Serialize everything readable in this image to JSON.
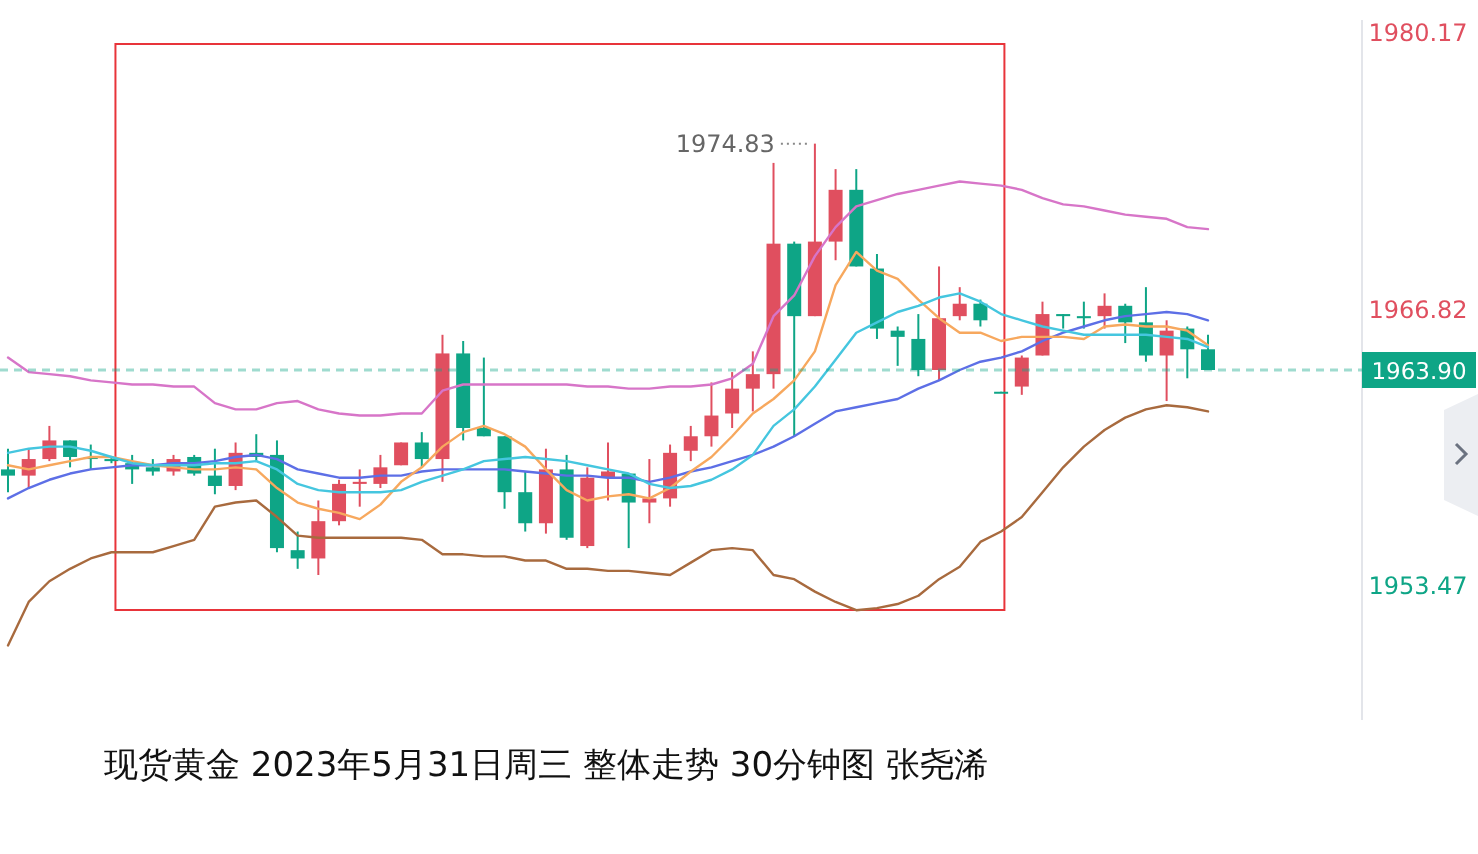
{
  "chart_data": {
    "type": "candlestick",
    "title": "现货黄金 2023年5月31日周三 整体走势 30分钟图 张尧浠",
    "categories": [
      null,
      null,
      null,
      null,
      null,
      null,
      null,
      null,
      null,
      null,
      null,
      null,
      null,
      null,
      null,
      null,
      null,
      null,
      null,
      null,
      null,
      null,
      null,
      null,
      null,
      null,
      null,
      null,
      null,
      null,
      null,
      null,
      null,
      null,
      null,
      null,
      null,
      null,
      null,
      null,
      null,
      null,
      null,
      null,
      null,
      null,
      null,
      null,
      null,
      null,
      null,
      null,
      null,
      null,
      null,
      null,
      null,
      null,
      null
    ],
    "ohlc": [
      [
        1959.1,
        1960.1,
        1958.0,
        1958.8
      ],
      [
        1958.8,
        1960.1,
        1958.2,
        1959.6
      ],
      [
        1959.6,
        1961.2,
        1959.5,
        1960.5
      ],
      [
        1960.5,
        1960.5,
        1959.2,
        1959.7
      ],
      [
        1959.7,
        1960.3,
        1959.1,
        1959.6
      ],
      [
        1959.6,
        1959.7,
        1959.4,
        1959.5
      ],
      [
        1959.4,
        1959.8,
        1958.4,
        1959.1
      ],
      [
        1959.2,
        1959.6,
        1958.8,
        1959.0
      ],
      [
        1959.0,
        1959.8,
        1958.8,
        1959.6
      ],
      [
        1959.7,
        1959.8,
        1958.8,
        1958.9
      ],
      [
        1958.8,
        1960.1,
        1957.9,
        1958.3
      ],
      [
        1958.3,
        1960.4,
        1958.1,
        1959.9
      ],
      [
        1959.9,
        1960.8,
        1959.5,
        1959.7
      ],
      [
        1959.8,
        1960.5,
        1955.1,
        1955.3
      ],
      [
        1955.2,
        1956.1,
        1954.3,
        1954.8
      ],
      [
        1954.8,
        1957.6,
        1954.0,
        1956.6
      ],
      [
        1956.6,
        1958.6,
        1956.4,
        1958.4
      ],
      [
        1958.4,
        1959.1,
        1957.3,
        1958.5
      ],
      [
        1958.4,
        1959.8,
        1958.2,
        1959.2
      ],
      [
        1959.3,
        1960.4,
        1959.3,
        1960.4
      ],
      [
        1960.4,
        1960.9,
        1959.2,
        1959.6
      ],
      [
        1959.6,
        1965.6,
        1958.5,
        1964.7
      ],
      [
        1964.7,
        1965.3,
        1960.5,
        1961.1
      ],
      [
        1961.1,
        1964.5,
        1960.7,
        1960.7
      ],
      [
        1960.7,
        1960.7,
        1957.2,
        1958.0
      ],
      [
        1958.0,
        1959.0,
        1956.1,
        1956.5
      ],
      [
        1956.5,
        1960.1,
        1956.0,
        1959.1
      ],
      [
        1959.1,
        1959.8,
        1955.7,
        1955.8
      ],
      [
        1955.4,
        1959.2,
        1955.3,
        1958.7
      ],
      [
        1958.7,
        1960.4,
        1957.6,
        1959.0
      ],
      [
        1958.9,
        1958.9,
        1955.3,
        1957.5
      ],
      [
        1957.5,
        1959.6,
        1956.5,
        1957.7
      ],
      [
        1957.7,
        1960.3,
        1957.3,
        1959.9
      ],
      [
        1960.0,
        1961.2,
        1959.5,
        1960.7
      ],
      [
        1960.7,
        1963.3,
        1960.2,
        1961.7
      ],
      [
        1961.8,
        1963.8,
        1961.1,
        1963.0
      ],
      [
        1963.0,
        1964.8,
        1961.9,
        1963.7
      ],
      [
        1963.7,
        1973.9,
        1963.0,
        1970.0
      ],
      [
        1970.0,
        1970.1,
        1960.7,
        1966.5
      ],
      [
        1966.5,
        1974.83,
        1966.5,
        1970.1
      ],
      [
        1970.1,
        1973.6,
        1969.2,
        1972.6
      ],
      [
        1972.6,
        1973.6,
        1968.9,
        1968.9
      ],
      [
        1968.8,
        1969.5,
        1965.4,
        1965.9
      ],
      [
        1965.8,
        1966.0,
        1964.1,
        1965.5
      ],
      [
        1965.4,
        1966.6,
        1963.6,
        1963.9
      ],
      [
        1963.9,
        1968.9,
        1963.4,
        1966.4
      ],
      [
        1966.5,
        1967.9,
        1966.3,
        1967.1
      ],
      [
        1967.1,
        1967.3,
        1966.0,
        1966.3
      ],
      [
        1962.85,
        1962.85,
        1962.8,
        1962.8
      ],
      [
        1963.1,
        1964.6,
        1962.7,
        1964.5
      ],
      [
        1964.6,
        1967.2,
        1964.6,
        1966.6
      ],
      [
        1966.6,
        1966.6,
        1965.9,
        1966.5
      ],
      [
        1966.5,
        1967.2,
        1965.9,
        1966.4
      ],
      [
        1966.5,
        1967.6,
        1965.9,
        1967.0
      ],
      [
        1967.0,
        1967.1,
        1965.2,
        1966.2
      ],
      [
        1966.2,
        1967.9,
        1964.3,
        1964.6
      ],
      [
        1964.6,
        1966.3,
        1962.4,
        1965.8
      ],
      [
        1965.9,
        1966.0,
        1963.5,
        1964.9
      ],
      [
        1964.9,
        1965.6,
        1963.9,
        1963.9
      ]
    ],
    "colors": [
      "#0ea586",
      "#e04f5f",
      "#e04f5f",
      "#0ea586",
      "#0ea586",
      "#0ea586",
      "#0ea586",
      "#0ea586",
      "#e04f5f",
      "#0ea586",
      "#0ea586",
      "#e04f5f",
      "#0ea586",
      "#0ea586",
      "#0ea586",
      "#e04f5f",
      "#e04f5f",
      "#e04f5f",
      "#e04f5f",
      "#e04f5f",
      "#0ea586",
      "#e04f5f",
      "#0ea586",
      "#0ea586",
      "#0ea586",
      "#0ea586",
      "#e04f5f",
      "#0ea586",
      "#e04f5f",
      "#e04f5f",
      "#0ea586",
      "#e04f5f",
      "#e04f5f",
      "#e04f5f",
      "#e04f5f",
      "#e04f5f",
      "#e04f5f",
      "#e04f5f",
      "#0ea586",
      "#e04f5f",
      "#e04f5f",
      "#0ea586",
      "#0ea586",
      "#0ea586",
      "#0ea586",
      "#e04f5f",
      "#e04f5f",
      "#0ea586",
      "#0ea586",
      "#e04f5f",
      "#e04f5f",
      "#0ea586",
      "#0ea586",
      "#e04f5f",
      "#0ea586",
      "#0ea586",
      "#e04f5f",
      "#0ea586",
      "#0ea586"
    ],
    "series": [
      {
        "type": "line",
        "color": "#d775c8",
        "values": [
          1964.5,
          1963.8,
          1963.7,
          1963.6,
          1963.4,
          1963.3,
          1963.2,
          1963.2,
          1963.1,
          1963.1,
          1962.3,
          1962.0,
          1962.0,
          1962.3,
          1962.4,
          1962.0,
          1961.8,
          1961.7,
          1961.7,
          1961.8,
          1961.8,
          1962.9,
          1963.2,
          1963.2,
          1963.2,
          1963.2,
          1963.2,
          1963.2,
          1963.1,
          1963.1,
          1963.0,
          1963.0,
          1963.1,
          1963.1,
          1963.2,
          1963.5,
          1964.2,
          1966.5,
          1967.5,
          1969.4,
          1970.8,
          1971.8,
          1972.1,
          1972.4,
          1972.6,
          1972.8,
          1973.0,
          1972.9,
          1972.8,
          1972.6,
          1972.2,
          1971.9,
          1971.8,
          1971.6,
          1971.4,
          1971.3,
          1971.2,
          1970.8,
          1970.7
        ]
      },
      {
        "type": "line",
        "color": "#5d6fe6",
        "values": [
          1957.7,
          1958.2,
          1958.6,
          1958.9,
          1959.1,
          1959.2,
          1959.3,
          1959.3,
          1959.4,
          1959.4,
          1959.5,
          1959.7,
          1959.8,
          1959.6,
          1959.1,
          1958.9,
          1958.7,
          1958.7,
          1958.8,
          1958.8,
          1959.0,
          1959.1,
          1959.1,
          1959.1,
          1959.1,
          1959.0,
          1958.9,
          1958.8,
          1958.8,
          1958.7,
          1958.7,
          1958.5,
          1958.7,
          1959.0,
          1959.2,
          1959.5,
          1959.8,
          1960.2,
          1960.7,
          1961.3,
          1961.9,
          1962.1,
          1962.3,
          1962.5,
          1963.0,
          1963.4,
          1963.9,
          1964.3,
          1964.5,
          1964.8,
          1965.3,
          1965.7,
          1966.0,
          1966.3,
          1966.5,
          1966.6,
          1966.7,
          1966.6,
          1966.3
        ]
      },
      {
        "type": "line",
        "color": "#a86a3e",
        "values": [
          1950.6,
          1952.7,
          1953.7,
          1954.3,
          1954.8,
          1955.1,
          1955.1,
          1955.1,
          1955.4,
          1955.7,
          1957.3,
          1957.5,
          1957.6,
          1956.8,
          1955.9,
          1955.8,
          1955.8,
          1955.8,
          1955.8,
          1955.8,
          1955.7,
          1955.0,
          1955.0,
          1954.9,
          1954.9,
          1954.7,
          1954.7,
          1954.3,
          1954.3,
          1954.2,
          1954.2,
          1954.1,
          1954.0,
          1954.6,
          1955.2,
          1955.3,
          1955.2,
          1954.0,
          1953.8,
          1953.2,
          1952.7,
          1952.3,
          1952.4,
          1952.6,
          1953.0,
          1953.8,
          1954.4,
          1955.6,
          1956.1,
          1956.8,
          1958.0,
          1959.2,
          1960.2,
          1961.0,
          1961.6,
          1962.0,
          1962.2,
          1962.1,
          1961.9
        ]
      },
      {
        "type": "line",
        "color": "#f7a85e",
        "values": [
          1959.3,
          1959.1,
          1959.3,
          1959.5,
          1959.7,
          1959.7,
          1959.5,
          1959.3,
          1959.2,
          1959.1,
          1959.1,
          1959.2,
          1959.1,
          1958.2,
          1957.5,
          1957.2,
          1957.0,
          1956.7,
          1957.4,
          1958.5,
          1959.2,
          1960.2,
          1960.9,
          1961.2,
          1960.8,
          1960.2,
          1959.1,
          1958.1,
          1957.6,
          1957.8,
          1957.9,
          1957.7,
          1958.2,
          1959.0,
          1959.7,
          1960.7,
          1961.8,
          1962.5,
          1963.4,
          1964.8,
          1968.0,
          1969.6,
          1968.7,
          1968.3,
          1967.3,
          1966.4,
          1965.7,
          1965.7,
          1965.3,
          1965.5,
          1965.5,
          1965.5,
          1965.4,
          1966.0,
          1966.1,
          1966.0,
          1966.0,
          1965.8,
          1965.1
        ]
      },
      {
        "type": "line",
        "color": "#45c6df",
        "values": [
          1959.9,
          1960.1,
          1960.2,
          1960.2,
          1960.0,
          1959.7,
          1959.4,
          1959.3,
          1959.3,
          1959.3,
          1959.4,
          1959.4,
          1959.5,
          1959.1,
          1958.4,
          1958.1,
          1958.0,
          1958.0,
          1958.0,
          1958.1,
          1958.5,
          1958.8,
          1959.1,
          1959.5,
          1959.6,
          1959.7,
          1959.6,
          1959.5,
          1959.3,
          1959.1,
          1958.9,
          1958.4,
          1958.2,
          1958.3,
          1958.6,
          1959.1,
          1959.8,
          1961.2,
          1962.0,
          1963.1,
          1964.4,
          1965.7,
          1966.2,
          1966.7,
          1967.0,
          1967.4,
          1967.6,
          1967.2,
          1966.6,
          1966.3,
          1966.0,
          1965.8,
          1965.6,
          1965.6,
          1965.6,
          1965.6,
          1965.5,
          1965.4,
          1965.0
        ]
      }
    ],
    "ylim": [
      1947,
      1980.8
    ],
    "yticks": [
      1980.17,
      1966.82,
      1953.47
    ],
    "ref_lines": [
      {
        "axis": "y",
        "value": 1963.9,
        "label": "1963.90",
        "color": "#0ea586",
        "line_style": "dashed"
      }
    ],
    "annotations": [
      "1974.83"
    ]
  }
}
